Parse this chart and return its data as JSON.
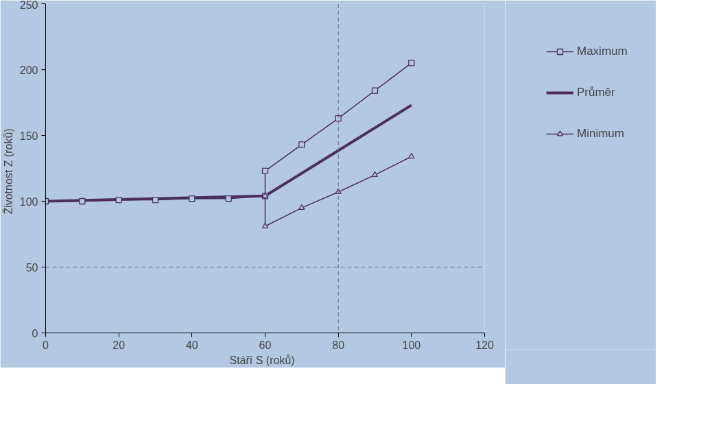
{
  "chart_data": {
    "type": "line",
    "xlabel": "Stáří  S  (roků)",
    "ylabel": "Životnost  Z  (roků)",
    "xlim": [
      0,
      120
    ],
    "xticks": [
      0,
      20,
      40,
      60,
      80,
      100,
      120
    ],
    "ylim": [
      0,
      250
    ],
    "yticks": [
      0,
      50,
      100,
      150,
      200,
      250
    ],
    "grid": false,
    "legend": "right",
    "series": [
      {
        "name": "Maximum",
        "color": "#4a2f5e",
        "marker": "square",
        "x": [
          0,
          10,
          20,
          30,
          40,
          50,
          60,
          60,
          70,
          80,
          90,
          100
        ],
        "values": [
          100,
          100,
          101,
          101,
          102,
          102,
          104,
          123,
          143,
          163,
          184,
          205
        ]
      },
      {
        "name": "Průměr",
        "color": "#4a2f5e",
        "marker": "none",
        "x": [
          0,
          60,
          100
        ],
        "values": [
          100,
          104,
          173
        ]
      },
      {
        "name": "Minimum",
        "color": "#4a2f5e",
        "marker": "triangle",
        "x": [
          60,
          60,
          70,
          80,
          90,
          100
        ],
        "values": [
          104,
          81,
          95,
          107,
          120,
          134
        ]
      }
    ],
    "ref_lines": [
      {
        "axis": "x",
        "value": 80,
        "color": "#6a6080",
        "line_style": "dashed"
      },
      {
        "axis": "y",
        "value": 50,
        "color": "#6a6080",
        "line_style": "dashed"
      }
    ]
  }
}
